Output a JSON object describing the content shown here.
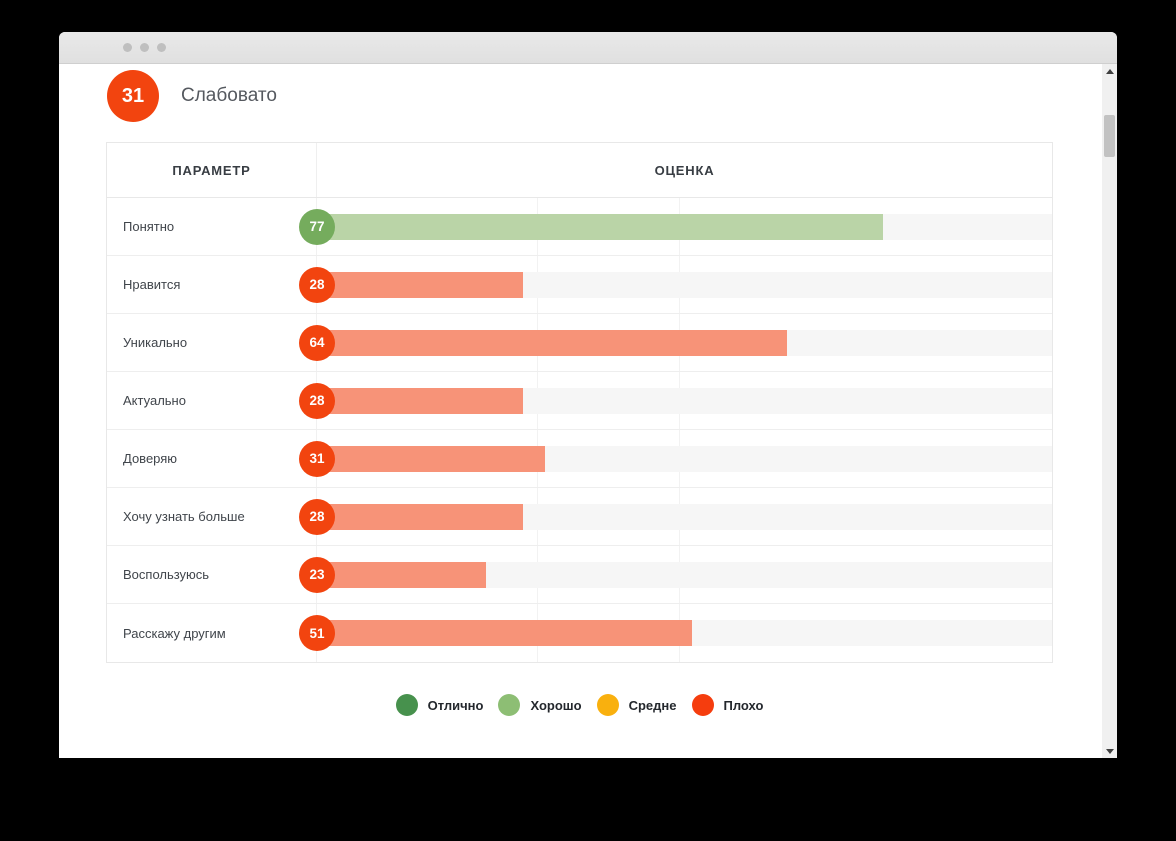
{
  "header": {
    "score": "31",
    "label": "Слабовато"
  },
  "table": {
    "param_header": "ПАРАМЕТР",
    "score_header": "ОЦЕНКА",
    "rows": [
      {
        "label": "Понятно",
        "value": 77,
        "level": "good"
      },
      {
        "label": "Нравится",
        "value": 28,
        "level": "bad"
      },
      {
        "label": "Уникально",
        "value": 64,
        "level": "bad"
      },
      {
        "label": "Актуально",
        "value": 28,
        "level": "bad"
      },
      {
        "label": "Доверяю",
        "value": 31,
        "level": "bad"
      },
      {
        "label": "Хочу узнать больше",
        "value": 28,
        "level": "bad"
      },
      {
        "label": "Воспользуюсь",
        "value": 23,
        "level": "bad"
      },
      {
        "label": "Расскажу другим",
        "value": 51,
        "level": "bad"
      }
    ]
  },
  "legend": {
    "items": [
      {
        "label": "Отлично",
        "color": "#47914d"
      },
      {
        "label": "Хорошо",
        "color": "#8dbe74"
      },
      {
        "label": "Средне",
        "color": "#f9b00e"
      },
      {
        "label": "Плохо",
        "color": "#f53d0e"
      }
    ]
  },
  "colors": {
    "score_bad": "#f2440f",
    "bar_bad": "#f79378",
    "score_good": "#75ac5d",
    "bar_good": "#bad4a7"
  },
  "icons": {
    "window_dots": "three gray circles",
    "scroll_up": "triangle-up",
    "scroll_down": "triangle-down"
  },
  "chart_data": {
    "type": "bar",
    "orientation": "horizontal",
    "categories": [
      "Понятно",
      "Нравится",
      "Уникально",
      "Актуально",
      "Доверяю",
      "Хочу узнать больше",
      "Воспользуюсь",
      "Расскажу другим"
    ],
    "values": [
      77,
      28,
      64,
      28,
      31,
      28,
      23,
      51
    ],
    "value_range": [
      0,
      100
    ],
    "overall_score": 31,
    "title": "Слабовато",
    "legend": [
      "Отлично",
      "Хорошо",
      "Средне",
      "Плохо"
    ],
    "legend_position": "bottom-center",
    "level_colors": {
      "good_bar": "#bad4a7",
      "good_badge": "#75ac5d",
      "bad_bar": "#f79378",
      "bad_badge": "#f2440f"
    }
  }
}
